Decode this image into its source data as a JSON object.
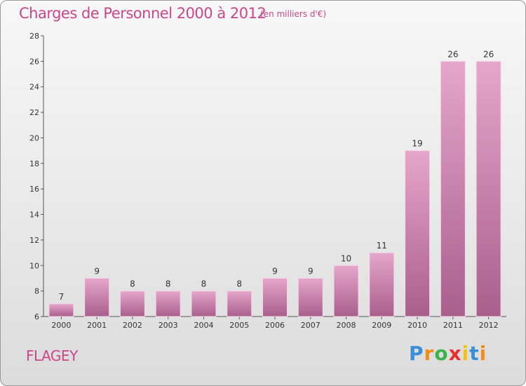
{
  "header": {
    "title": "Charges de Personnel 2000 à 2012",
    "subtitle": "(en milliers d'€)"
  },
  "footer": {
    "place": "FLAGEY",
    "brand_letters": [
      "P",
      "r",
      "o",
      "x",
      "i",
      "t",
      "i"
    ]
  },
  "colors": {
    "accent": "#c8478a",
    "bar_top": "#e6a6cb",
    "bar_bottom": "#a85f8c"
  },
  "chart_data": {
    "type": "bar",
    "title": "Charges de Personnel 2000 à 2012",
    "subtitle": "(en milliers d'€)",
    "categories": [
      "2000",
      "2001",
      "2002",
      "2003",
      "2004",
      "2005",
      "2006",
      "2007",
      "2008",
      "2009",
      "2010",
      "2011",
      "2012"
    ],
    "values": [
      7,
      9,
      8,
      8,
      8,
      8,
      9,
      9,
      10,
      11,
      19,
      26,
      26
    ],
    "ylim": [
      6,
      28
    ],
    "yticks": [
      6,
      8,
      10,
      12,
      14,
      16,
      18,
      20,
      22,
      24,
      26,
      28
    ],
    "grid": false,
    "legend": "none"
  }
}
